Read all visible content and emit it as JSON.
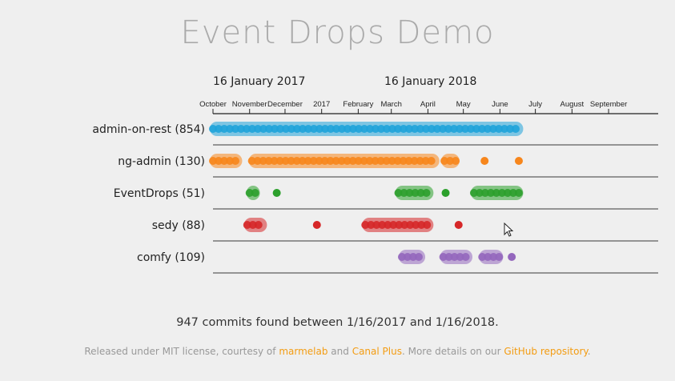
{
  "title": "Event Drops Demo",
  "chart_data": {
    "type": "scatter",
    "range_labels": [
      "16 January 2017",
      "16 January 2018"
    ],
    "x_ticks": [
      "October",
      "November",
      "December",
      "2017",
      "February",
      "March",
      "April",
      "May",
      "June",
      "July",
      "August",
      "September"
    ],
    "x_tick_dates": [
      "2016-10-01",
      "2016-11-01",
      "2016-12-01",
      "2017-01-01",
      "2017-02-01",
      "2017-03-01",
      "2017-04-01",
      "2017-05-01",
      "2017-06-01",
      "2017-07-01",
      "2017-08-01",
      "2017-09-01"
    ],
    "xlim": [
      "2016-10-01",
      "2017-10-13"
    ],
    "series": [
      {
        "name": "admin-on-rest (854)",
        "color": "#1fa3d9",
        "clusters": [
          [
            "2016-10-01",
            "2017-06-18"
          ]
        ]
      },
      {
        "name": "ng-admin (130)",
        "color": "#f7861c",
        "clusters": [
          [
            "2016-10-01",
            "2016-10-23"
          ],
          [
            "2016-11-03",
            "2017-04-08"
          ],
          [
            "2017-04-15",
            "2017-04-25"
          ],
          [
            "2017-05-19",
            "2017-05-19"
          ],
          [
            "2017-06-17",
            "2017-06-17"
          ]
        ]
      },
      {
        "name": "EventDrops (51)",
        "color": "#2ca02c",
        "clusters": [
          [
            "2016-11-01",
            "2016-11-07"
          ],
          [
            "2016-11-24",
            "2016-11-24"
          ],
          [
            "2017-03-07",
            "2017-04-03"
          ],
          [
            "2017-04-16",
            "2017-04-16"
          ],
          [
            "2017-05-10",
            "2017-06-18"
          ]
        ]
      },
      {
        "name": "sedy (88)",
        "color": "#d62728",
        "clusters": [
          [
            "2016-10-30",
            "2016-11-13"
          ],
          [
            "2016-12-28",
            "2016-12-28"
          ],
          [
            "2017-02-07",
            "2017-04-03"
          ],
          [
            "2017-04-27",
            "2017-04-27"
          ]
        ]
      },
      {
        "name": "comfy (109)",
        "color": "#9467bd",
        "clusters": [
          [
            "2017-03-10",
            "2017-03-27"
          ],
          [
            "2017-04-14",
            "2017-05-06"
          ],
          [
            "2017-05-17",
            "2017-06-01"
          ],
          [
            "2017-06-11",
            "2017-06-11"
          ]
        ]
      }
    ]
  },
  "summary": "947 commits found between 1/16/2017 and 1/16/2018.",
  "footer": {
    "t1": "Released under MIT license, courtesy of ",
    "l1": "marmelab",
    "t2": " and ",
    "l2": "Canal Plus",
    "t3": ". More details on our ",
    "l3": "GitHub repository",
    "t4": "."
  }
}
